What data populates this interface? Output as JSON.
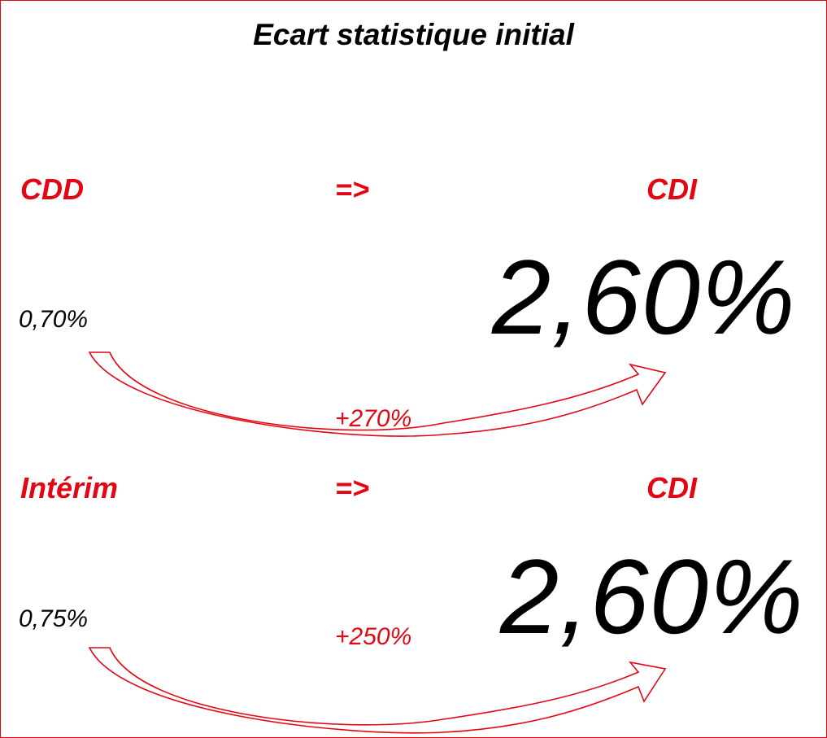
{
  "title": "Ecart statistique initial",
  "accent_color": "#e30613",
  "transitions": [
    {
      "from": "CDD",
      "arrow": "=>",
      "to": "CDI",
      "from_rate": "0,70%",
      "to_rate": "2,60%",
      "growth": "+270%"
    },
    {
      "from": "Intérim",
      "arrow": "=>",
      "to": "CDI",
      "from_rate": "0,75%",
      "to_rate": "2,60%",
      "growth": "+250%"
    }
  ]
}
